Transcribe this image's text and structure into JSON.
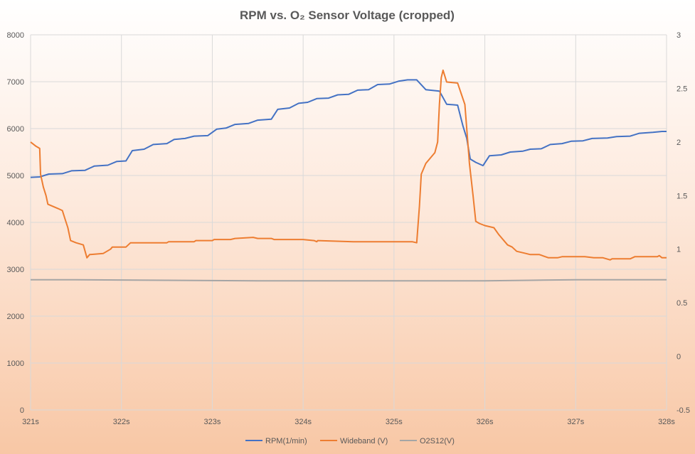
{
  "chart_data": {
    "type": "line",
    "title": "RPM vs. O₂ Sensor Voltage (cropped)",
    "x_ticks": [
      "321s",
      "322s",
      "323s",
      "324s",
      "325s",
      "326s",
      "327s",
      "328s"
    ],
    "xlim": [
      321,
      328
    ],
    "y_left": {
      "ylim": [
        0,
        8000
      ],
      "ticks": [
        "0",
        "1000",
        "2000",
        "3000",
        "4000",
        "5000",
        "6000",
        "7000",
        "8000"
      ]
    },
    "y_right": {
      "ylim": [
        -0.5,
        3
      ],
      "ticks": [
        "-0.5",
        "0",
        "0.5",
        "1",
        "1.5",
        "2",
        "2.5",
        "3"
      ]
    },
    "series": [
      {
        "name": "RPM(1/min)",
        "axis": "left",
        "color": "#4472c4",
        "points": [
          [
            321,
            4960
          ],
          [
            321.1,
            4970
          ],
          [
            321.2,
            5030
          ],
          [
            321.35,
            5040
          ],
          [
            321.45,
            5100
          ],
          [
            321.6,
            5110
          ],
          [
            321.7,
            5200
          ],
          [
            321.85,
            5220
          ],
          [
            321.95,
            5300
          ],
          [
            322.05,
            5310
          ],
          [
            322.12,
            5530
          ],
          [
            322.25,
            5560
          ],
          [
            322.35,
            5660
          ],
          [
            322.5,
            5680
          ],
          [
            322.58,
            5770
          ],
          [
            322.7,
            5790
          ],
          [
            322.8,
            5840
          ],
          [
            322.95,
            5850
          ],
          [
            323.05,
            5990
          ],
          [
            323.15,
            6010
          ],
          [
            323.25,
            6090
          ],
          [
            323.4,
            6110
          ],
          [
            323.5,
            6180
          ],
          [
            323.65,
            6200
          ],
          [
            323.72,
            6410
          ],
          [
            323.85,
            6440
          ],
          [
            323.95,
            6540
          ],
          [
            324.05,
            6560
          ],
          [
            324.15,
            6640
          ],
          [
            324.28,
            6650
          ],
          [
            324.38,
            6720
          ],
          [
            324.5,
            6730
          ],
          [
            324.6,
            6820
          ],
          [
            324.72,
            6830
          ],
          [
            324.82,
            6940
          ],
          [
            324.95,
            6950
          ],
          [
            325.05,
            7010
          ],
          [
            325.15,
            7040
          ],
          [
            325.25,
            7040
          ],
          [
            325.35,
            6830
          ],
          [
            325.5,
            6800
          ],
          [
            325.58,
            6520
          ],
          [
            325.7,
            6500
          ],
          [
            325.76,
            6050
          ],
          [
            325.8,
            5800
          ],
          [
            325.84,
            5350
          ],
          [
            325.9,
            5280
          ],
          [
            325.98,
            5210
          ],
          [
            326.05,
            5420
          ],
          [
            326.18,
            5440
          ],
          [
            326.28,
            5500
          ],
          [
            326.42,
            5520
          ],
          [
            326.5,
            5560
          ],
          [
            326.62,
            5570
          ],
          [
            326.72,
            5660
          ],
          [
            326.85,
            5680
          ],
          [
            326.95,
            5730
          ],
          [
            327.08,
            5740
          ],
          [
            327.18,
            5790
          ],
          [
            327.35,
            5800
          ],
          [
            327.45,
            5830
          ],
          [
            327.6,
            5840
          ],
          [
            327.7,
            5900
          ],
          [
            327.85,
            5920
          ],
          [
            327.95,
            5940
          ],
          [
            328,
            5940
          ]
        ]
      },
      {
        "name": "Wideband (V)",
        "axis": "right",
        "color": "#ed7d31",
        "points": [
          [
            321,
            2.0
          ],
          [
            321.06,
            1.96
          ],
          [
            321.1,
            1.94
          ],
          [
            321.11,
            1.7
          ],
          [
            321.14,
            1.58
          ],
          [
            321.17,
            1.5
          ],
          [
            321.19,
            1.42
          ],
          [
            321.3,
            1.38
          ],
          [
            321.35,
            1.36
          ],
          [
            321.38,
            1.28
          ],
          [
            321.41,
            1.2
          ],
          [
            321.44,
            1.08
          ],
          [
            321.5,
            1.06
          ],
          [
            321.58,
            1.04
          ],
          [
            321.62,
            0.92
          ],
          [
            321.65,
            0.95
          ],
          [
            321.8,
            0.96
          ],
          [
            321.88,
            1.0
          ],
          [
            321.9,
            1.02
          ],
          [
            322.05,
            1.02
          ],
          [
            322.1,
            1.06
          ],
          [
            322.5,
            1.06
          ],
          [
            322.52,
            1.07
          ],
          [
            322.8,
            1.07
          ],
          [
            322.82,
            1.08
          ],
          [
            323.0,
            1.08
          ],
          [
            323.02,
            1.09
          ],
          [
            323.2,
            1.09
          ],
          [
            323.25,
            1.1
          ],
          [
            323.45,
            1.11
          ],
          [
            323.5,
            1.1
          ],
          [
            323.65,
            1.1
          ],
          [
            323.68,
            1.09
          ],
          [
            324.0,
            1.09
          ],
          [
            324.12,
            1.08
          ],
          [
            324.15,
            1.07
          ],
          [
            324.16,
            1.08
          ],
          [
            324.55,
            1.07
          ],
          [
            325.1,
            1.07
          ],
          [
            325.2,
            1.07
          ],
          [
            325.25,
            1.06
          ],
          [
            325.28,
            1.4
          ],
          [
            325.3,
            1.7
          ],
          [
            325.35,
            1.8
          ],
          [
            325.45,
            1.9
          ],
          [
            325.48,
            2.0
          ],
          [
            325.5,
            2.35
          ],
          [
            325.52,
            2.6
          ],
          [
            325.54,
            2.67
          ],
          [
            325.58,
            2.56
          ],
          [
            325.7,
            2.55
          ],
          [
            325.74,
            2.45
          ],
          [
            325.78,
            2.35
          ],
          [
            325.83,
            1.8
          ],
          [
            325.87,
            1.5
          ],
          [
            325.9,
            1.26
          ],
          [
            325.94,
            1.24
          ],
          [
            326.0,
            1.22
          ],
          [
            326.1,
            1.2
          ],
          [
            326.15,
            1.14
          ],
          [
            326.25,
            1.04
          ],
          [
            326.3,
            1.02
          ],
          [
            326.35,
            0.98
          ],
          [
            326.45,
            0.96
          ],
          [
            326.5,
            0.95
          ],
          [
            326.6,
            0.95
          ],
          [
            326.7,
            0.92
          ],
          [
            326.8,
            0.92
          ],
          [
            326.85,
            0.93
          ],
          [
            327.0,
            0.93
          ],
          [
            327.1,
            0.93
          ],
          [
            327.2,
            0.92
          ],
          [
            327.3,
            0.92
          ],
          [
            327.38,
            0.9
          ],
          [
            327.4,
            0.91
          ],
          [
            327.6,
            0.91
          ],
          [
            327.65,
            0.93
          ],
          [
            327.9,
            0.93
          ],
          [
            327.92,
            0.94
          ],
          [
            327.95,
            0.92
          ],
          [
            328,
            0.92
          ]
        ]
      },
      {
        "name": "O2S12(V)",
        "axis": "right",
        "color": "#a5a5a5",
        "points": [
          [
            321,
            0.715
          ],
          [
            321.5,
            0.715
          ],
          [
            322.5,
            0.71
          ],
          [
            323.5,
            0.705
          ],
          [
            324.5,
            0.705
          ],
          [
            325.5,
            0.705
          ],
          [
            326.0,
            0.705
          ],
          [
            326.5,
            0.71
          ],
          [
            327.0,
            0.715
          ],
          [
            328,
            0.715
          ]
        ]
      }
    ]
  }
}
